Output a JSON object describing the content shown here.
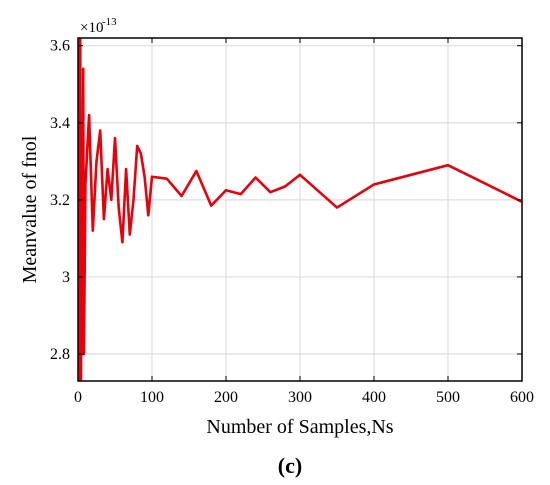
{
  "chart_data": {
    "type": "line",
    "title": "",
    "xlabel": "Number of Samples,Ns",
    "ylabel": "Meanvalue of fnol",
    "y_exponent_label": "×10",
    "y_exponent_power": "-13",
    "panel_label": "(c)",
    "xlim": [
      0,
      600
    ],
    "ylim": [
      2.73,
      3.62
    ],
    "x_ticks": [
      0,
      100,
      200,
      300,
      400,
      500,
      600
    ],
    "x_tick_labels": [
      "0",
      "100",
      "200",
      "300",
      "400",
      "500",
      "600"
    ],
    "y_ticks": [
      2.8,
      3.0,
      3.2,
      3.4,
      3.6
    ],
    "y_tick_labels": [
      "2.8",
      "3",
      "3.2",
      "3.4",
      "3.6"
    ],
    "grid": true,
    "series_color": "#e8000b",
    "series": [
      {
        "x": [
          1,
          2,
          3,
          4,
          5,
          6,
          7,
          8,
          10,
          15,
          20,
          25,
          30,
          35,
          40,
          45,
          50,
          55,
          60,
          65,
          70,
          75,
          80,
          85,
          90,
          95,
          100,
          120,
          140,
          160,
          180,
          200,
          220,
          240,
          260,
          280,
          300,
          350,
          400,
          500,
          600
        ],
        "y": [
          3.62,
          2.73,
          3.62,
          2.73,
          3.3,
          2.8,
          3.54,
          2.8,
          3.24,
          3.42,
          3.12,
          3.3,
          3.38,
          3.15,
          3.28,
          3.2,
          3.36,
          3.18,
          3.09,
          3.28,
          3.11,
          3.2,
          3.34,
          3.32,
          3.26,
          3.16,
          3.26,
          3.255,
          3.21,
          3.275,
          3.185,
          3.225,
          3.215,
          3.258,
          3.22,
          3.235,
          3.265,
          3.18,
          3.24,
          3.29,
          3.195
        ]
      }
    ]
  }
}
